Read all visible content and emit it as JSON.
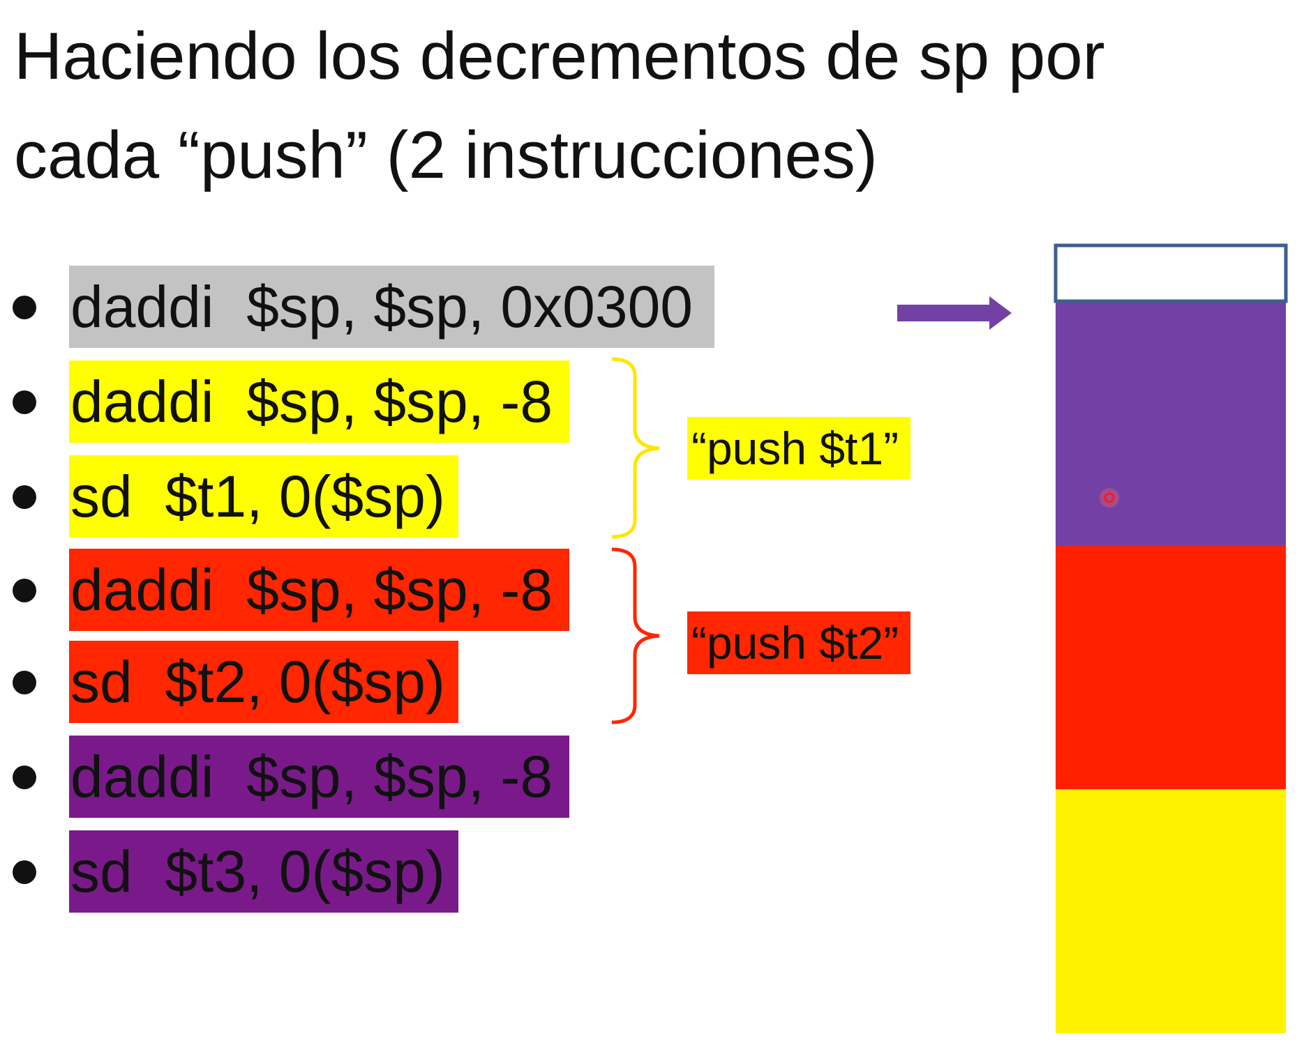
{
  "title": {
    "line1": "Haciendo los decrementos de sp por",
    "line2": "cada “push” (2 instrucciones)"
  },
  "instructions": [
    {
      "text": "daddi  $sp, $sp, 0x0300",
      "color": "#c3c3c3"
    },
    {
      "text": "daddi  $sp, $sp, -8",
      "color": "#ffff00"
    },
    {
      "text": "sd  $t1, 0($sp)",
      "color": "#ffff00"
    },
    {
      "text": "daddi  $sp, $sp, -8",
      "color": "#ff2600"
    },
    {
      "text": "sd  $t2, 0($sp)",
      "color": "#ff2600"
    },
    {
      "text": "daddi  $sp, $sp, -8",
      "color": "#7a1a8a"
    },
    {
      "text": "sd  $t3, 0($sp)",
      "color": "#7a1a8a"
    }
  ],
  "groups": [
    {
      "label": "“push $t1”",
      "color": "#ffff00",
      "brace_color": "#ffe600"
    },
    {
      "label": "“push $t2”",
      "color": "#ff2600",
      "brace_color": "#ff2600"
    }
  ],
  "stack": {
    "frame_color": "#3d5f8f",
    "arrow_color": "#7341a6",
    "cells": [
      {
        "color": "#ffffff"
      },
      {
        "color": "#7341a6"
      },
      {
        "color": "#ff2000"
      },
      {
        "color": "#fff200"
      }
    ]
  }
}
